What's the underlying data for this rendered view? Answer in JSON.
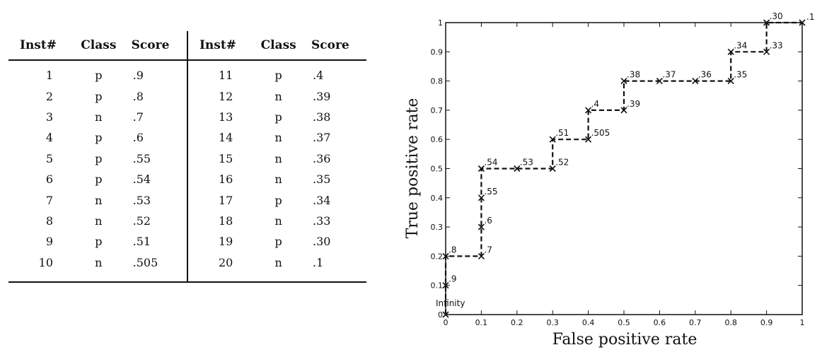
{
  "table": {
    "headers": [
      "Inst#",
      "Class",
      "Score",
      "Inst#",
      "Class",
      "Score"
    ],
    "rows": [
      [
        "1",
        "p",
        ".9",
        "11",
        "p",
        ".4"
      ],
      [
        "2",
        "p",
        ".8",
        "12",
        "n",
        ".39"
      ],
      [
        "3",
        "n",
        ".7",
        "13",
        "p",
        ".38"
      ],
      [
        "4",
        "p",
        ".6",
        "14",
        "n",
        ".37"
      ],
      [
        "5",
        "p",
        ".55",
        "15",
        "n",
        ".36"
      ],
      [
        "6",
        "p",
        ".54",
        "16",
        "n",
        ".35"
      ],
      [
        "7",
        "n",
        ".53",
        "17",
        "p",
        ".34"
      ],
      [
        "8",
        "n",
        ".52",
        "18",
        "n",
        ".33"
      ],
      [
        "9",
        "p",
        ".51",
        "19",
        "p",
        ".30"
      ],
      [
        "10",
        "n",
        ".505",
        "20",
        "n",
        ".1"
      ]
    ]
  },
  "chart_data": {
    "type": "line",
    "title": "",
    "xlabel": "False positive rate",
    "ylabel": "True positive rate",
    "xlim": [
      0,
      1
    ],
    "ylim": [
      0,
      1
    ],
    "xticks": [
      "0",
      "0.1",
      "0.2",
      "0.3",
      "0.4",
      "0.5",
      "0.6",
      "0.7",
      "0.8",
      "0.9",
      "1"
    ],
    "yticks": [
      "0",
      "0.1",
      "0.2",
      "0.3",
      "0.4",
      "0.5",
      "0.6",
      "0.7",
      "0.8",
      "0.9",
      "1"
    ],
    "line_style": "dashed",
    "marker": "x",
    "color": "#111111",
    "points": [
      {
        "x": 0.0,
        "y": 0.0,
        "label": "Infinity"
      },
      {
        "x": 0.0,
        "y": 0.1,
        "label": ".9"
      },
      {
        "x": 0.0,
        "y": 0.2,
        "label": ".8"
      },
      {
        "x": 0.1,
        "y": 0.2,
        "label": ".7"
      },
      {
        "x": 0.1,
        "y": 0.3,
        "label": ".6"
      },
      {
        "x": 0.1,
        "y": 0.4,
        "label": ".55"
      },
      {
        "x": 0.1,
        "y": 0.5,
        "label": ".54"
      },
      {
        "x": 0.2,
        "y": 0.5,
        "label": ".53"
      },
      {
        "x": 0.3,
        "y": 0.5,
        "label": ".52"
      },
      {
        "x": 0.3,
        "y": 0.6,
        "label": ".51"
      },
      {
        "x": 0.4,
        "y": 0.6,
        "label": ".505"
      },
      {
        "x": 0.4,
        "y": 0.7,
        "label": ".4"
      },
      {
        "x": 0.5,
        "y": 0.7,
        "label": ".39"
      },
      {
        "x": 0.5,
        "y": 0.8,
        "label": ".38"
      },
      {
        "x": 0.6,
        "y": 0.8,
        "label": ".37"
      },
      {
        "x": 0.7,
        "y": 0.8,
        "label": ".36"
      },
      {
        "x": 0.8,
        "y": 0.8,
        "label": ".35"
      },
      {
        "x": 0.8,
        "y": 0.9,
        "label": ".34"
      },
      {
        "x": 0.9,
        "y": 0.9,
        "label": ".33"
      },
      {
        "x": 0.9,
        "y": 1.0,
        "label": ".30"
      },
      {
        "x": 1.0,
        "y": 1.0,
        "label": ".1"
      }
    ]
  }
}
